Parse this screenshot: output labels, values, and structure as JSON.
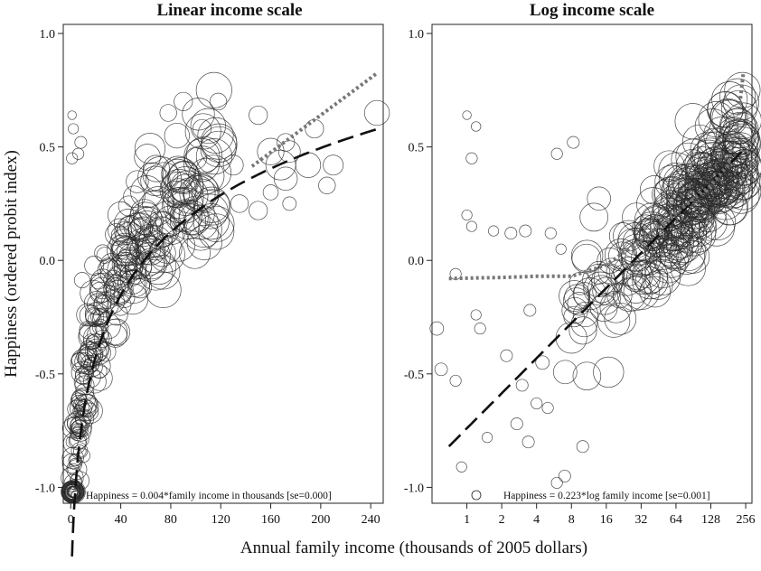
{
  "chart_data": {
    "type": "scatter",
    "xlabel": "Annual family income (thousands of 2005 dollars)",
    "ylabel": "Happiness (ordered probit index)",
    "marker": "open-circle-sized-by-weight",
    "panels": [
      {
        "title": "Linear income scale",
        "xscale": "linear",
        "xlim": [
          -6,
          250
        ],
        "ylim": [
          -1.07,
          1.04
        ],
        "xticks": [
          0,
          40,
          80,
          120,
          160,
          200,
          240
        ],
        "xtick_labels": [
          "0",
          "40",
          "80",
          "120",
          "160",
          "200",
          "240"
        ],
        "yticks": [
          -1.0,
          -0.5,
          0.0,
          0.5,
          1.0
        ],
        "ytick_labels": [
          "-1.0",
          "-0.5",
          "0.0",
          "0.5",
          "1.0"
        ],
        "annotation": "Happiness = 0.004*family income in thousands [se=0.000]",
        "fits": [
          {
            "style": "long-dash",
            "form": "log",
            "intercept": -1.68,
            "slope": 0.41,
            "x_range": [
              1,
              245
            ]
          },
          {
            "style": "dotted",
            "form": "linear",
            "intercept": -0.18,
            "slope": 0.0041,
            "x_range": [
              145,
              245
            ]
          }
        ],
        "points": [
          {
            "x": 1,
            "y": 0.64,
            "s": 0.4
          },
          {
            "x": 2,
            "y": 0.58,
            "s": 0.6
          },
          {
            "x": 1,
            "y": 0.45,
            "s": 0.7
          },
          {
            "x": 6,
            "y": 0.47,
            "s": 0.7
          },
          {
            "x": 8,
            "y": 0.52,
            "s": 0.8
          },
          {
            "x": 1,
            "y": -0.8,
            "s": 0.8
          },
          {
            "x": 3,
            "y": -0.88,
            "s": 0.8
          },
          {
            "x": 2,
            "y": -0.92,
            "s": 0.7
          },
          {
            "x": 4,
            "y": -0.97,
            "s": 0.8
          },
          {
            "x": 10,
            "y": -0.86,
            "s": 1.0
          },
          {
            "x": 7,
            "y": -0.75,
            "s": 0.9
          },
          {
            "x": 85,
            "y": 0.55,
            "s": 2.4
          },
          {
            "x": 90,
            "y": 0.7,
            "s": 1.6
          },
          {
            "x": 78,
            "y": 0.65,
            "s": 1.4
          },
          {
            "x": 105,
            "y": 0.58,
            "s": 1.6
          },
          {
            "x": 118,
            "y": 0.7,
            "s": 1.4
          },
          {
            "x": 100,
            "y": 0.45,
            "s": 2.0
          },
          {
            "x": 130,
            "y": 0.42,
            "s": 1.8
          },
          {
            "x": 135,
            "y": 0.25,
            "s": 1.5
          },
          {
            "x": 150,
            "y": 0.22,
            "s": 1.6
          },
          {
            "x": 160,
            "y": 0.48,
            "s": 2.6
          },
          {
            "x": 168,
            "y": 0.42,
            "s": 3.0
          },
          {
            "x": 172,
            "y": 0.36,
            "s": 2.2
          },
          {
            "x": 175,
            "y": 0.48,
            "s": 2.0
          },
          {
            "x": 190,
            "y": 0.42,
            "s": 2.4
          },
          {
            "x": 210,
            "y": 0.42,
            "s": 1.8
          },
          {
            "x": 205,
            "y": 0.33,
            "s": 1.4
          },
          {
            "x": 195,
            "y": 0.58,
            "s": 1.6
          },
          {
            "x": 172,
            "y": 0.52,
            "s": 1.5
          },
          {
            "x": 245,
            "y": 0.65,
            "s": 2.4
          },
          {
            "x": 175,
            "y": 0.25,
            "s": 1.0
          },
          {
            "x": 160,
            "y": 0.3,
            "s": 1.2
          },
          {
            "x": 150,
            "y": 0.64,
            "s": 1.6
          }
        ],
        "generated_cloud": {
          "seed": 7,
          "count": 300,
          "x_range": [
            1,
            120
          ]
        }
      },
      {
        "title": "Log income scale",
        "xscale": "log2",
        "xlim": [
          0.5,
          290
        ],
        "ylim": [
          -1.07,
          1.04
        ],
        "xticks": [
          1,
          2,
          4,
          8,
          16,
          32,
          64,
          128,
          256
        ],
        "xtick_labels": [
          "1",
          "2",
          "4",
          "8",
          "16",
          "32",
          "64",
          "128",
          "256"
        ],
        "yticks": [
          -1.0,
          -0.5,
          0.0,
          0.5,
          1.0
        ],
        "ytick_labels": [
          "-1.0",
          "-0.5",
          "0.0",
          "0.5",
          "1.0"
        ],
        "annotation": "Happiness = 0.223*log family income [se=0.001]",
        "fits": [
          {
            "style": "long-dash",
            "form": "log",
            "intercept": -0.74,
            "slope": 0.223,
            "x_range": [
              0.7,
              245
            ]
          },
          {
            "style": "dotted",
            "form": "piecewise",
            "x": [
              0.7,
              2,
              4,
              8,
              16,
              32,
              64,
              128,
              180,
              220,
              245
            ],
            "y": [
              -0.08,
              -0.075,
              -0.07,
              -0.07,
              -0.02,
              0.09,
              0.21,
              0.33,
              0.42,
              0.62,
              0.83
            ]
          }
        ],
        "points": [
          {
            "x": 1.0,
            "y": 0.64,
            "s": 0.4
          },
          {
            "x": 1.2,
            "y": 0.59,
            "s": 0.5
          },
          {
            "x": 1.1,
            "y": 0.45,
            "s": 0.7
          },
          {
            "x": 6.0,
            "y": 0.47,
            "s": 0.7
          },
          {
            "x": 8.3,
            "y": 0.52,
            "s": 0.8
          },
          {
            "x": 0.55,
            "y": -0.3,
            "s": 1.0
          },
          {
            "x": 0.6,
            "y": -0.48,
            "s": 0.9
          },
          {
            "x": 0.8,
            "y": -0.06,
            "s": 0.7
          },
          {
            "x": 0.8,
            "y": -0.53,
            "s": 0.7
          },
          {
            "x": 0.9,
            "y": -0.91,
            "s": 0.6
          },
          {
            "x": 1.0,
            "y": 0.2,
            "s": 0.6
          },
          {
            "x": 1.1,
            "y": 0.15,
            "s": 0.6
          },
          {
            "x": 1.2,
            "y": -0.24,
            "s": 0.6
          },
          {
            "x": 1.3,
            "y": -0.3,
            "s": 0.7
          },
          {
            "x": 1.5,
            "y": -0.78,
            "s": 0.6
          },
          {
            "x": 1.7,
            "y": 0.13,
            "s": 0.6
          },
          {
            "x": 2.4,
            "y": 0.12,
            "s": 0.8
          },
          {
            "x": 2.7,
            "y": -0.72,
            "s": 0.8
          },
          {
            "x": 3.0,
            "y": -0.55,
            "s": 0.8
          },
          {
            "x": 3.4,
            "y": -0.8,
            "s": 0.8
          },
          {
            "x": 3.5,
            "y": -0.22,
            "s": 0.8
          },
          {
            "x": 4.0,
            "y": -0.63,
            "s": 0.7
          },
          {
            "x": 5.0,
            "y": -0.65,
            "s": 0.7
          },
          {
            "x": 6.0,
            "y": -0.98,
            "s": 0.7
          },
          {
            "x": 7.0,
            "y": -0.95,
            "s": 0.8
          },
          {
            "x": 10.0,
            "y": -0.82,
            "s": 0.8
          },
          {
            "x": 3.2,
            "y": 0.13,
            "s": 0.8
          },
          {
            "x": 5.3,
            "y": 0.12,
            "s": 0.7
          },
          {
            "x": 6.5,
            "y": 0.05,
            "s": 0.6
          },
          {
            "x": 4.5,
            "y": -0.45,
            "s": 1.0
          },
          {
            "x": 2.2,
            "y": -0.42,
            "s": 0.8
          }
        ],
        "generated_cloud": {
          "seed": 11,
          "count": 300,
          "x_range": [
            4,
            250
          ]
        }
      }
    ]
  }
}
